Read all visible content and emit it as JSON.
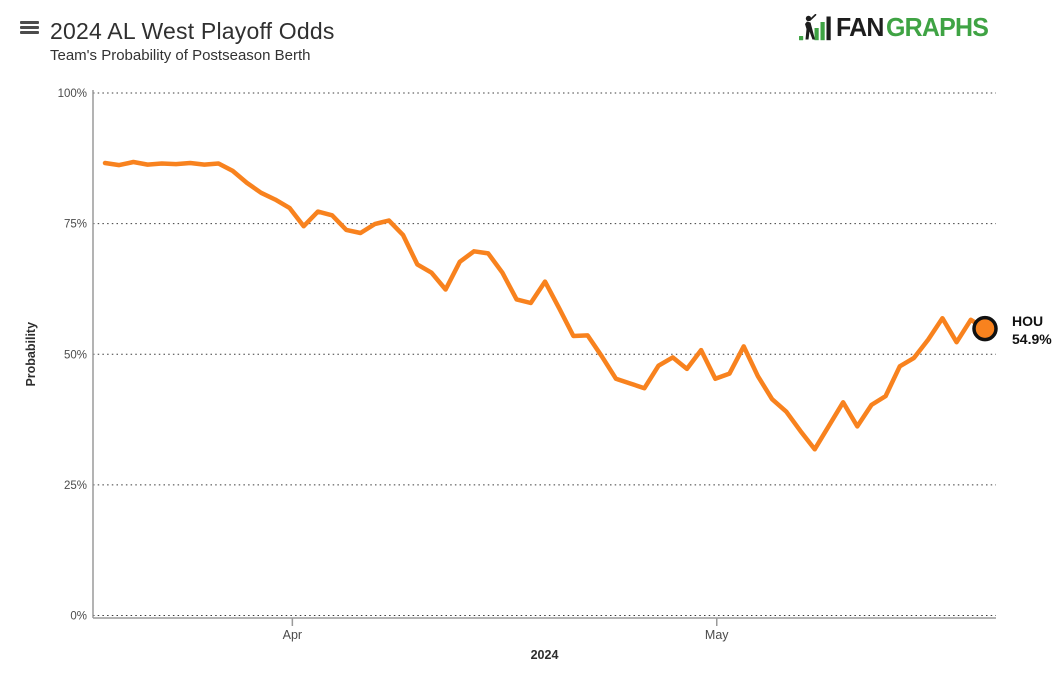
{
  "header": {
    "title": "2024 AL West Playoff Odds",
    "subtitle": "Team's Probability of Postseason Berth",
    "logo": {
      "fan": "FAN",
      "graphs": "GRAPHS"
    }
  },
  "colors": {
    "line_orange": "#F8821E",
    "logo_green": "#3FA344",
    "logo_black": "#1D1D1D",
    "marker_outline": "#111111",
    "grid_dot": "#3C3C3C",
    "axis_gray": "#9A9A9A"
  },
  "chart_data": {
    "type": "line",
    "title": "2024 AL West Playoff Odds",
    "subtitle": "Team's Probability of Postseason Berth",
    "ylabel": "Probability",
    "year_label": "2024",
    "ylim": [
      0,
      100
    ],
    "grid": "horizontal-dotted",
    "legend_position": "end-of-line",
    "yticks": [
      {
        "value": 100,
        "label": "100%"
      },
      {
        "value": 75,
        "label": "75%"
      },
      {
        "value": 50,
        "label": "50%"
      },
      {
        "value": 25,
        "label": "25%"
      },
      {
        "value": 0,
        "label": "0%"
      }
    ],
    "xticks": [
      {
        "label": "Apr",
        "day_index": 13.2
      },
      {
        "label": "May",
        "day_index": 43.1
      }
    ],
    "series": [
      {
        "name": "HOU",
        "color": "#F8821E",
        "final_value": 54.9,
        "final_value_label": "54.9%",
        "values": [
          86.6,
          86.2,
          86.8,
          86.3,
          86.5,
          86.4,
          86.6,
          86.3,
          86.5,
          85.1,
          82.8,
          80.9,
          79.6,
          78.0,
          74.5,
          77.3,
          76.6,
          73.8,
          73.2,
          74.9,
          75.6,
          72.8,
          67.2,
          65.6,
          62.4,
          67.7,
          69.7,
          69.3,
          65.6,
          60.5,
          59.8,
          63.9,
          58.8,
          53.5,
          53.6,
          49.6,
          45.3,
          44.4,
          43.5,
          47.8,
          49.4,
          47.2,
          50.8,
          45.3,
          46.3,
          51.5,
          45.8,
          41.4,
          39.0,
          35.3,
          31.8,
          36.3,
          40.8,
          36.2,
          40.3,
          42.0,
          47.7,
          49.3,
          52.8,
          56.9,
          52.3,
          56.6,
          54.9
        ]
      }
    ]
  }
}
